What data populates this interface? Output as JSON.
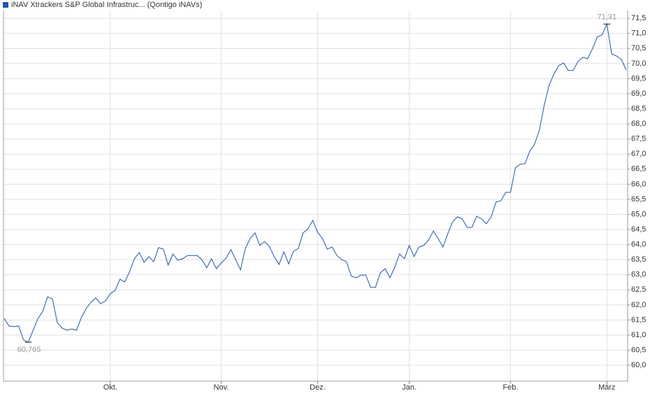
{
  "chart_data": {
    "type": "line",
    "series": [
      {
        "name": "iNAV Xtrackers S&P Global Infrastruc... (Qontigo iNAVs)",
        "color": "#1f55a8",
        "values": [
          61.55,
          61.3,
          61.28,
          61.3,
          60.84,
          60.765,
          61.16,
          61.55,
          61.79,
          62.27,
          62.2,
          61.42,
          61.23,
          61.16,
          61.2,
          61.16,
          61.58,
          61.88,
          62.09,
          62.23,
          62.04,
          62.13,
          62.37,
          62.48,
          62.85,
          62.76,
          63.1,
          63.53,
          63.74,
          63.41,
          63.6,
          63.43,
          63.9,
          63.85,
          63.32,
          63.69,
          63.48,
          63.53,
          63.64,
          63.64,
          63.64,
          63.5,
          63.23,
          63.53,
          63.2,
          63.39,
          63.55,
          63.83,
          63.5,
          63.16,
          63.87,
          64.2,
          64.39,
          63.97,
          64.1,
          63.94,
          63.6,
          63.34,
          63.76,
          63.36,
          63.78,
          63.87,
          64.39,
          64.52,
          64.8,
          64.41,
          64.2,
          63.85,
          63.92,
          63.64,
          63.5,
          63.43,
          62.95,
          62.9,
          62.99,
          62.99,
          62.58,
          62.58,
          63.06,
          63.2,
          62.9,
          63.25,
          63.69,
          63.53,
          63.97,
          63.6,
          63.92,
          63.97,
          64.15,
          64.45,
          64.2,
          63.92,
          64.36,
          64.76,
          64.92,
          64.85,
          64.57,
          64.57,
          64.94,
          64.85,
          64.69,
          64.92,
          65.41,
          65.45,
          65.73,
          65.73,
          66.54,
          66.66,
          66.68,
          67.1,
          67.33,
          67.8,
          68.63,
          69.28,
          69.65,
          69.93,
          70.02,
          69.77,
          69.77,
          70.07,
          70.21,
          70.16,
          70.49,
          70.88,
          70.95,
          71.31,
          70.32,
          70.25,
          70.14,
          69.79
        ]
      }
    ],
    "xlim": [
      -0.15,
      129.3
    ],
    "xticks": [
      {
        "value": 22,
        "label": "Okt."
      },
      {
        "value": 45,
        "label": "Nov."
      },
      {
        "value": 65,
        "label": "Dez."
      },
      {
        "value": 84,
        "label": "Jan."
      },
      {
        "value": 105,
        "label": "Feb."
      },
      {
        "value": 125,
        "label": "März"
      }
    ],
    "ylim": [
      59.47,
      71.76
    ],
    "yticks": [
      {
        "value": 60,
        "label": "60,0"
      },
      {
        "value": 60.5,
        "label": "60,5"
      },
      {
        "value": 61,
        "label": "61,0"
      },
      {
        "value": 61.5,
        "label": "61,5"
      },
      {
        "value": 62,
        "label": "62,0"
      },
      {
        "value": 62.5,
        "label": "62,5"
      },
      {
        "value": 63,
        "label": "63,0"
      },
      {
        "value": 63.5,
        "label": "63,5"
      },
      {
        "value": 64,
        "label": "64,0"
      },
      {
        "value": 64.5,
        "label": "64,5"
      },
      {
        "value": 65,
        "label": "65,0"
      },
      {
        "value": 65.5,
        "label": "65,5"
      },
      {
        "value": 66,
        "label": "66,0"
      },
      {
        "value": 66.5,
        "label": "66,5"
      },
      {
        "value": 67,
        "label": "67,0"
      },
      {
        "value": 67.5,
        "label": "67,5"
      },
      {
        "value": 68,
        "label": "68,0"
      },
      {
        "value": 68.5,
        "label": "68,5"
      },
      {
        "value": 69,
        "label": "69,0"
      },
      {
        "value": 69.5,
        "label": "69,5"
      },
      {
        "value": 70,
        "label": "70,0"
      },
      {
        "value": 70.5,
        "label": "70,5"
      },
      {
        "value": 71,
        "label": "71,0"
      },
      {
        "value": 71.5,
        "label": "71,5"
      }
    ],
    "grid": true,
    "annotations": [
      {
        "index": 125,
        "label": "71,31",
        "position": "above"
      },
      {
        "index": 5,
        "label": "60,765",
        "position": "below"
      }
    ]
  }
}
